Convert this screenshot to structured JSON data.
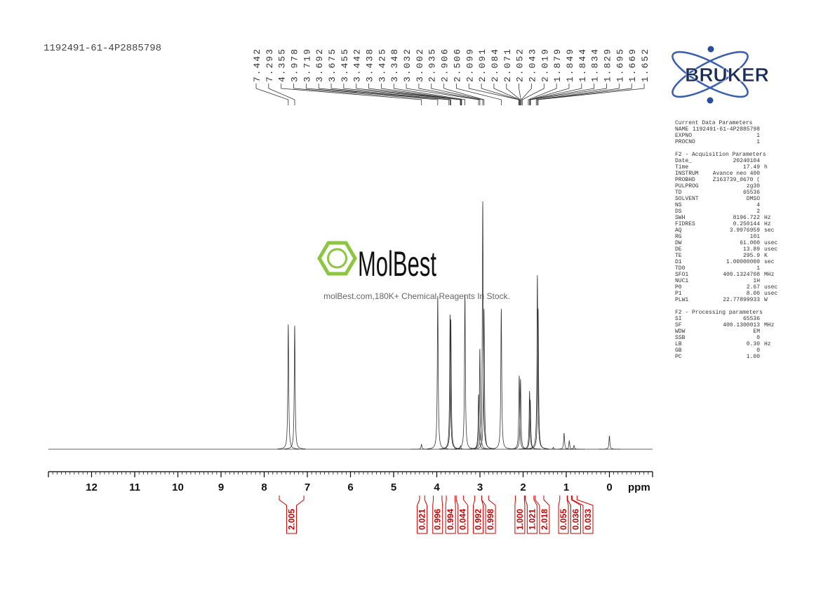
{
  "sample_id": "1192491-61-4P2885798",
  "logo": "BRUKER",
  "watermark": {
    "brand": "MolBest",
    "tagline": "molBest.com,180K+ Chemical Reagents In Stock."
  },
  "parameters": [
    {
      "title": "Current Data Parameters",
      "rows": [
        [
          "NAME",
          "1192491-61-4P2885798"
        ],
        [
          "EXPNO",
          "1"
        ],
        [
          "PROCNO",
          "1"
        ]
      ]
    },
    {
      "title": "F2 - Acquisition Parameters",
      "rows": [
        [
          "Date_",
          "20240104"
        ],
        [
          "Time",
          "17.49",
          "h"
        ],
        [
          "INSTRUM",
          "Avance neo 400"
        ],
        [
          "PROBHD",
          "Z163739_0670 ("
        ],
        [
          "PULPROG",
          "zg30"
        ],
        [
          "TD",
          "65536"
        ],
        [
          "SOLVENT",
          "DMSO"
        ],
        [
          "NS",
          "4"
        ],
        [
          "DS",
          "2"
        ],
        [
          "SWH",
          "8196.722",
          "Hz"
        ],
        [
          "FIDRES",
          "0.250144",
          "Hz"
        ],
        [
          "AQ",
          "3.9976959",
          "sec"
        ],
        [
          "RG",
          "101"
        ],
        [
          "DW",
          "61.000",
          "usec"
        ],
        [
          "DE",
          "13.89",
          "usec"
        ],
        [
          "TE",
          "295.9",
          "K"
        ],
        [
          "D1",
          "1.00000000",
          "sec"
        ],
        [
          "TD0",
          "1"
        ],
        [
          "SFO1",
          "400.1324708",
          "MHz"
        ],
        [
          "NUC1",
          "1H"
        ],
        [
          "P0",
          "2.67",
          "usec"
        ],
        [
          "P1",
          "8.00",
          "usec"
        ],
        [
          "PLW1",
          "22.77899933",
          "W"
        ]
      ]
    },
    {
      "title": "F2 - Processing parameters",
      "rows": [
        [
          "SI",
          "65536"
        ],
        [
          "SF",
          "400.1300013",
          "MHz"
        ],
        [
          "WDW",
          "EM"
        ],
        [
          "SSB",
          "0"
        ],
        [
          "LB",
          "0.30",
          "Hz"
        ],
        [
          "GB",
          "0"
        ],
        [
          "PC",
          "1.00"
        ]
      ]
    }
  ],
  "chart_data": {
    "type": "nmr",
    "xlabel": "ppm",
    "xlim": [
      13,
      -1
    ],
    "xticks": [
      12,
      11,
      10,
      9,
      8,
      7,
      6,
      5,
      4,
      3,
      2,
      1,
      0
    ],
    "minor_tick_step": 0.1,
    "ylim": [
      0,
      100
    ],
    "color": "#333333",
    "peaks": {
      "ppm": [
        7.442,
        7.293,
        4.355,
        3.978,
        3.692,
        3.675,
        3.45,
        3.348,
        3.032,
        3.002,
        2.935,
        2.906,
        2.506,
        2.09,
        2.06,
        1.85,
        1.834,
        1.669,
        1.652,
        1.3,
        1.05,
        0.93,
        0.82,
        0
      ],
      "intensity": [
        50.4,
        49.9,
        2.0,
        61.8,
        54.4,
        52.4,
        1.4,
        62.3,
        22.1,
        40.5,
        100,
        56.7,
        56.7,
        29.7,
        28.3,
        23.5,
        20,
        70.3,
        56.7,
        0.8,
        6.5,
        3.4,
        1.5,
        5.4
      ]
    },
    "peak_labels": [
      7.442,
      7.293,
      4.355,
      3.978,
      3.719,
      3.692,
      3.675,
      3.455,
      3.442,
      3.438,
      3.425,
      3.348,
      3.032,
      3.002,
      2.935,
      2.906,
      2.506,
      2.099,
      2.091,
      2.084,
      2.071,
      2.052,
      2.043,
      2.019,
      1.879,
      1.849,
      1.844,
      1.834,
      1.829,
      1.695,
      1.669,
      1.652
    ],
    "integral_color": "#cc0000",
    "integrals": {
      "ranges": [
        [
          7.65,
          7.08
        ],
        [
          4.4,
          4.28
        ],
        [
          4.08,
          3.88
        ],
        [
          3.78,
          3.58
        ],
        [
          3.55,
          3.38
        ],
        [
          3.12,
          2.96
        ],
        [
          2.96,
          2.8
        ],
        [
          2.18,
          1.97
        ],
        [
          1.95,
          1.75
        ],
        [
          1.72,
          1.52
        ],
        [
          1.15,
          0.98
        ],
        [
          0.97,
          0.88
        ],
        [
          0.86,
          0.75
        ]
      ],
      "values": [
        2.005,
        0.021,
        0.996,
        0.994,
        0.044,
        0.992,
        0.998,
        1.0,
        1.021,
        2.018,
        0.055,
        0.036,
        0.033
      ],
      "value_labels": [
        "2.005",
        "0.021",
        "0.996",
        "0.994",
        "0.044",
        "0.992",
        "0.998",
        "1.000",
        "1.021",
        "2.018",
        "0.055",
        "0.036",
        "0.033"
      ]
    }
  }
}
